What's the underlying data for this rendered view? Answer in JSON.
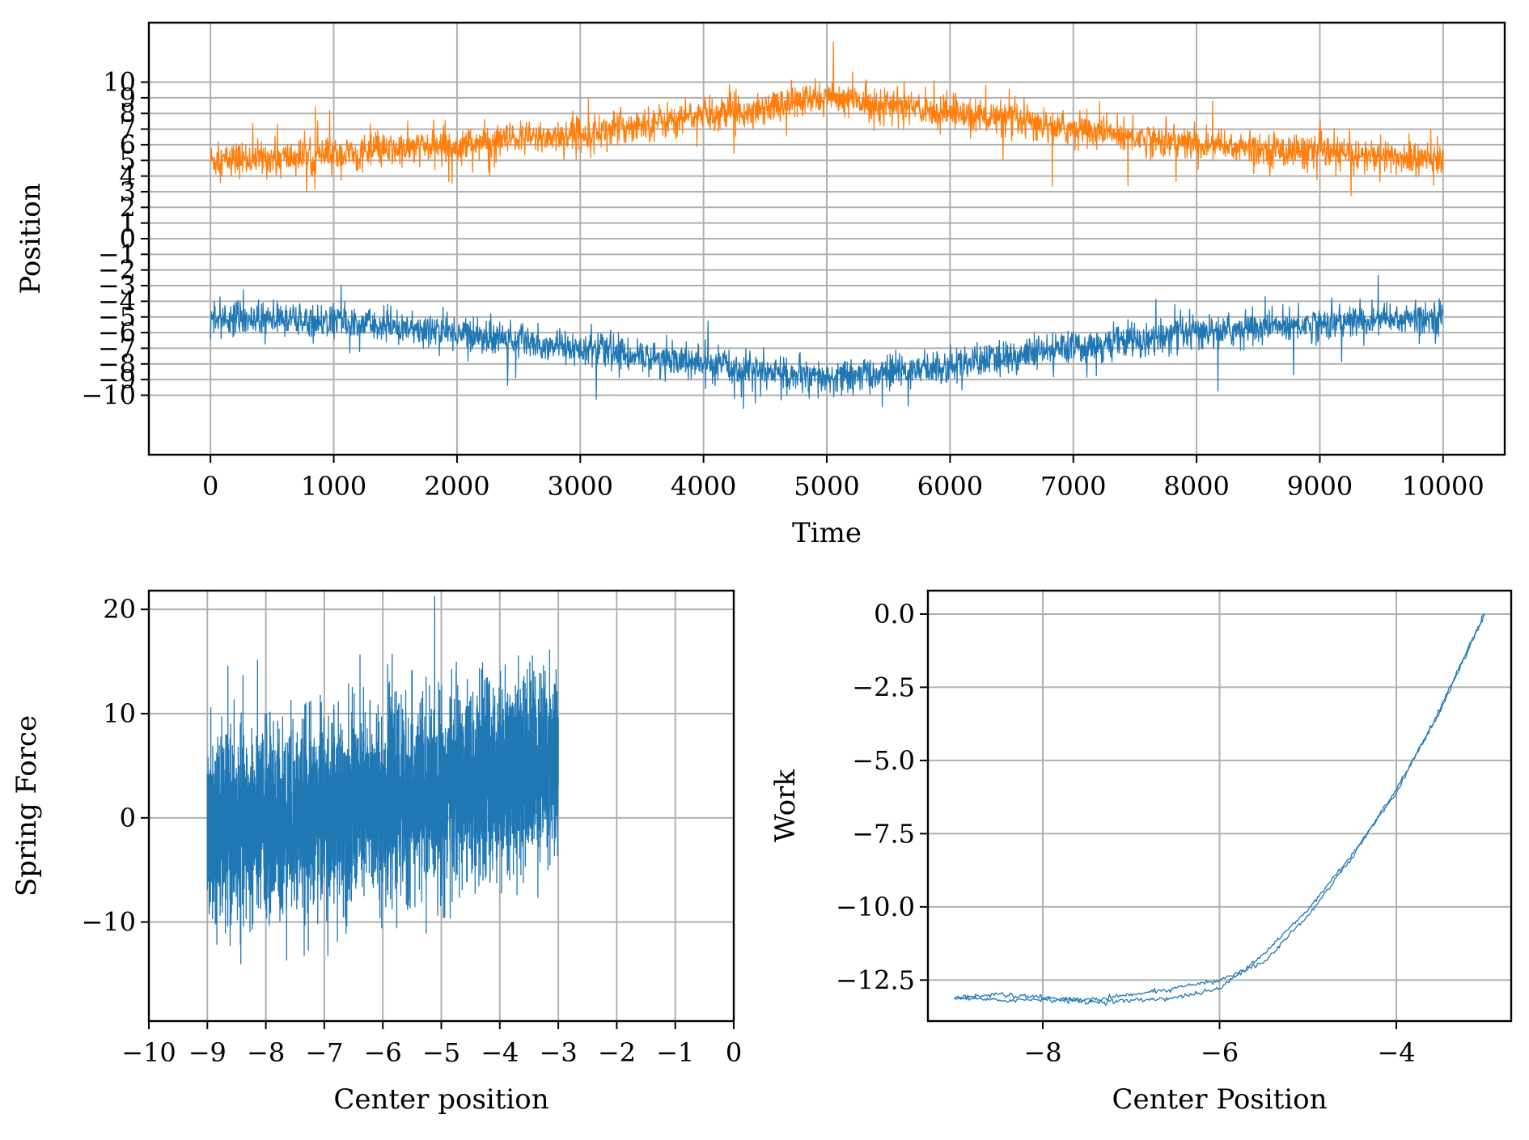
{
  "chart_data": [
    {
      "type": "line",
      "panel": "top",
      "xlabel": "Time",
      "ylabel": "Position",
      "xlim": [
        -500,
        10500
      ],
      "ylim": [
        -13.8,
        13.8
      ],
      "grid": true,
      "xticks": [
        0,
        1000,
        2000,
        3000,
        4000,
        5000,
        6000,
        7000,
        8000,
        9000,
        10000
      ],
      "xtick_labels": [
        "0",
        "1000",
        "2000",
        "3000",
        "4000",
        "5000",
        "6000",
        "7000",
        "8000",
        "9000",
        "10000"
      ],
      "yticks": [
        -10,
        -9,
        -8,
        -7,
        -6,
        -5,
        -4,
        -3,
        -2,
        -1,
        0,
        1,
        2,
        3,
        4,
        5,
        6,
        7,
        8,
        9,
        10
      ],
      "ytick_labels": [
        "−10",
        "−9",
        "−8",
        "−7",
        "−6",
        "−5",
        "−4",
        "−3",
        "−2",
        "−1",
        "0",
        "1",
        "2",
        "3",
        "4",
        "5",
        "6",
        "7",
        "8",
        "9",
        "10"
      ],
      "series": [
        {
          "color": "#ff7f0e",
          "description": "noisy position trace, mean rising from ~5 at t=0 to ~9 at t=5000 and back to ~5 at t=10000",
          "x": [
            0,
            1000,
            2000,
            3000,
            4000,
            5000,
            6000,
            7000,
            8000,
            9000,
            10000
          ],
          "y": [
            5.0,
            5.3,
            6.0,
            6.7,
            7.9,
            9.0,
            8.1,
            7.0,
            6.0,
            5.5,
            5.0
          ],
          "noise_amplitude": 1.0
        },
        {
          "color": "#1f77b4",
          "description": "noisy position trace, mean falling from ~-5 at t=0 to ~-9 at t=5000 and back to ~-5 at t=10000",
          "x": [
            0,
            1000,
            2000,
            3000,
            4000,
            5000,
            6000,
            7000,
            8000,
            9000,
            10000
          ],
          "y": [
            -5.0,
            -5.3,
            -6.0,
            -7.0,
            -8.0,
            -9.0,
            -8.1,
            -7.0,
            -6.0,
            -5.4,
            -5.0
          ],
          "noise_amplitude": 1.0
        }
      ]
    },
    {
      "type": "line",
      "panel": "bottom-left",
      "xlabel": "Center position",
      "ylabel": "Spring Force",
      "xlim": [
        -10,
        0
      ],
      "ylim": [
        -19.5,
        21.8
      ],
      "grid": true,
      "xticks": [
        -10,
        -9,
        -8,
        -7,
        -6,
        -5,
        -4,
        -3,
        -2,
        -1,
        0
      ],
      "xtick_labels": [
        "−10",
        "−9",
        "−8",
        "−7",
        "−6",
        "−5",
        "−4",
        "−3",
        "−2",
        "−1",
        "0"
      ],
      "yticks": [
        -10,
        0,
        10,
        20
      ],
      "ytick_labels": [
        "−10",
        "0",
        "10",
        "20"
      ],
      "series": [
        {
          "color": "#1f77b4",
          "description": "dense noisy spring force between center positions -9 and -3; band centre rises from about -2 at -9 to about 6 at -3",
          "x": [
            -9,
            -8,
            -7,
            -6,
            -5,
            -4,
            -3
          ],
          "y_center": [
            -1.5,
            -0.5,
            0.5,
            1.5,
            2.5,
            4.0,
            6.0
          ],
          "y_spread": [
            8,
            8,
            8,
            8,
            8,
            8,
            8
          ]
        }
      ]
    },
    {
      "type": "line",
      "panel": "bottom-right",
      "xlabel": "Center Position",
      "ylabel": "Work",
      "xlim": [
        -9.3,
        -2.7
      ],
      "ylim": [
        -13.9,
        0.8
      ],
      "grid": true,
      "xticks": [
        -8,
        -6,
        -4
      ],
      "xtick_labels": [
        "−8",
        "−6",
        "−4"
      ],
      "yticks": [
        0.0,
        -2.5,
        -5.0,
        -7.5,
        -10.0,
        -12.5
      ],
      "ytick_labels": [
        "0.0",
        "−2.5",
        "−5.0",
        "−7.5",
        "−10.0",
        "−12.5"
      ],
      "series": [
        {
          "color": "#1f77b4",
          "name": "",
          "x": [
            -3.0,
            -3.5,
            -4.0,
            -4.5,
            -5.0,
            -5.5,
            -6.0,
            -6.5,
            -7.0,
            -7.5,
            -8.0,
            -8.5,
            -9.0
          ],
          "y": [
            0.0,
            -3.3,
            -6.0,
            -8.3,
            -10.3,
            -11.9,
            -12.5,
            -12.8,
            -13.0,
            -13.2,
            -13.1,
            -13.0,
            -13.1
          ]
        },
        {
          "color": "#1f77b4",
          "name": "",
          "x": [
            -9.0,
            -8.5,
            -8.0,
            -7.5,
            -7.0,
            -6.5,
            -6.0,
            -5.5,
            -5.0,
            -4.5,
            -4.0,
            -3.5,
            -3.0
          ],
          "y": [
            -13.1,
            -13.2,
            -13.15,
            -13.25,
            -13.2,
            -13.1,
            -12.8,
            -11.6,
            -10.1,
            -8.2,
            -6.1,
            -3.2,
            0.05
          ]
        }
      ]
    }
  ]
}
